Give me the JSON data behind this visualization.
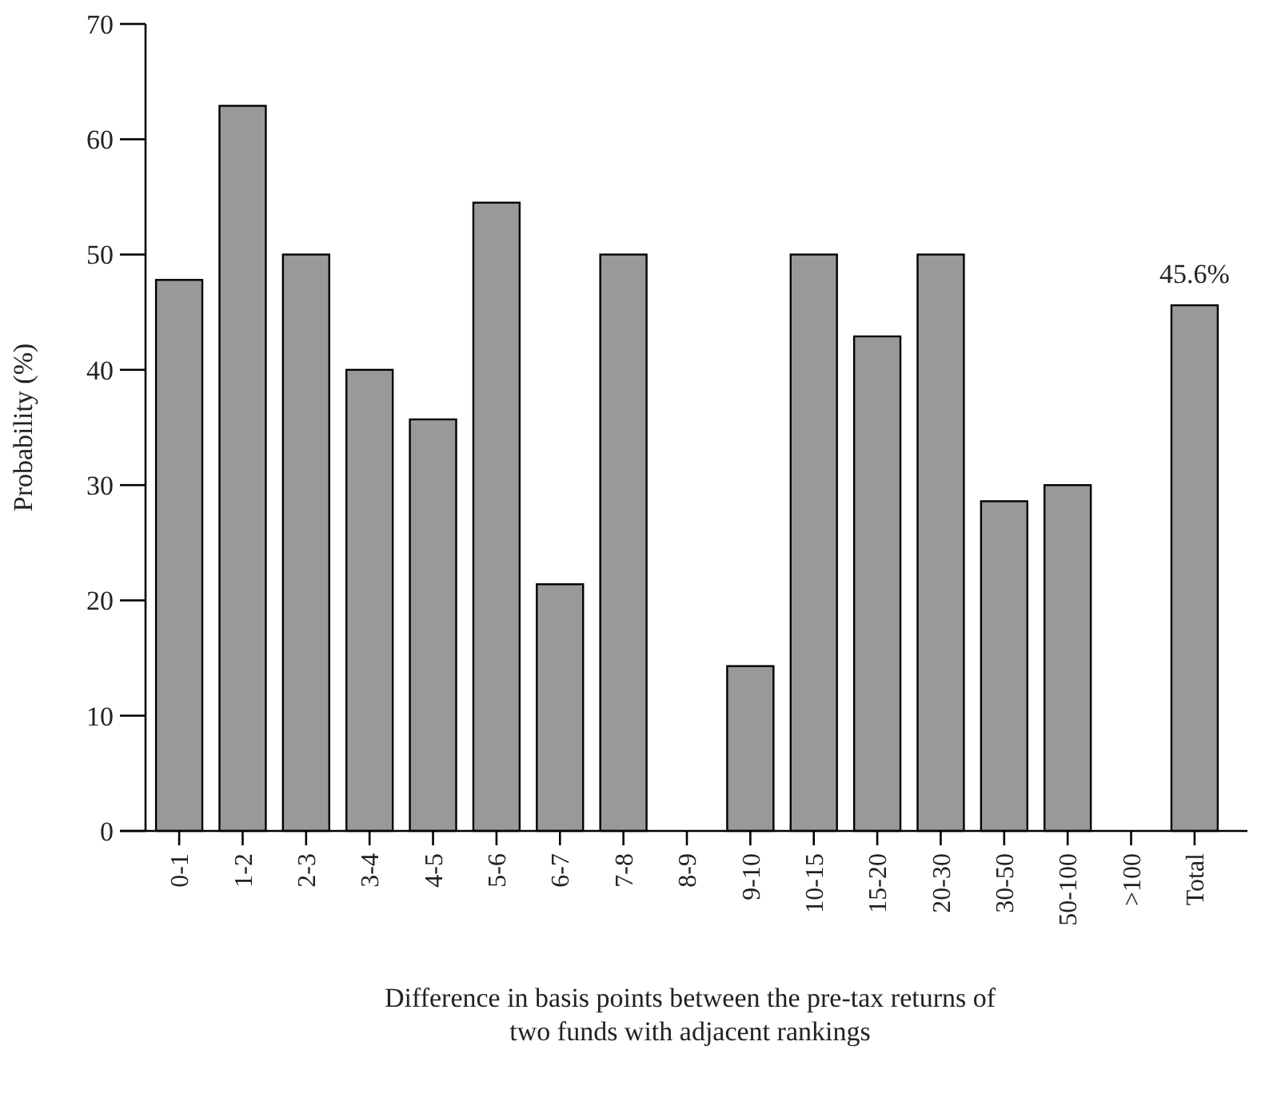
{
  "chart_data": {
    "type": "bar",
    "xlabel": "Difference in basis points between the pre-tax returns of\ntwo funds with adjacent rankings",
    "ylabel": "Probability (%)",
    "categories": [
      "0-1",
      "1-2",
      "2-3",
      "3-4",
      "4-5",
      "5-6",
      "6-7",
      "7-8",
      "8-9",
      "9-10",
      "10-15",
      "15-20",
      "20-30",
      "30-50",
      "50-100",
      ">100",
      "Total"
    ],
    "values": [
      47.8,
      62.9,
      50,
      40,
      35.7,
      54.5,
      21.4,
      50,
      0,
      14.3,
      50,
      42.9,
      50,
      28.6,
      30,
      0,
      45.6
    ],
    "value_labels": [
      null,
      null,
      null,
      null,
      null,
      null,
      null,
      null,
      null,
      null,
      null,
      null,
      null,
      null,
      null,
      null,
      "45.6%"
    ],
    "color": "#999999",
    "ylim": [
      0,
      70
    ],
    "yticks": [
      0,
      10,
      20,
      30,
      40,
      50,
      60,
      70
    ],
    "grid": false
  }
}
